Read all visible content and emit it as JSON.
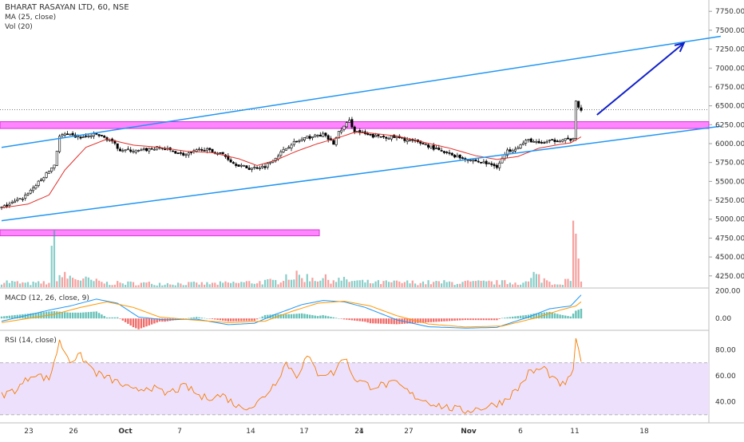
{
  "header": {
    "symbol_line": "BHARAT RASAYAN LTD, 60, NSE",
    "ma_label": "MA (25, close)",
    "vol_label": "Vol (20)"
  },
  "macd_panel": {
    "label": "MACD (12, 26, close, 9)"
  },
  "rsi_panel": {
    "label": "RSI (14, close)"
  },
  "colors": {
    "up": "#26a69a",
    "down": "#ef5350",
    "candle_body": "#000000",
    "ma_line": "#e0302a",
    "trend_line": "#2196f3",
    "zone_fill": "#ff66ff",
    "arrow": "#1020c8",
    "macd_line": "#2196f3",
    "signal_line": "#ff9800",
    "rsi_line": "#f57c00",
    "rsi_band": "#ede0fc"
  },
  "chart_data": [
    {
      "type": "candlestick",
      "title": "BHARAT RASAYAN LTD, 60, NSE",
      "ylim": [
        4100,
        7900
      ],
      "y_ticks": [
        "7750.00",
        "7500.00",
        "7250.00",
        "7000.00",
        "6750.00",
        "6500.00",
        "6250.00",
        "6000.00",
        "5750.00",
        "5500.00",
        "5250.00",
        "5000.00",
        "4750.00",
        "4500.00",
        "4250.00"
      ],
      "x_tick_labels": [
        "23",
        "26",
        "Oct",
        "7",
        "14",
        "17",
        "21",
        "24",
        "27",
        "Nov",
        "6",
        "11",
        "18"
      ],
      "close_anchors": [
        [
          0,
          5150
        ],
        [
          8,
          5280
        ],
        [
          15,
          5520
        ],
        [
          20,
          5720
        ],
        [
          22,
          6100
        ],
        [
          24,
          6120
        ],
        [
          30,
          6080
        ],
        [
          36,
          6120
        ],
        [
          41,
          6050
        ],
        [
          45,
          5920
        ],
        [
          52,
          5900
        ],
        [
          60,
          5950
        ],
        [
          70,
          5850
        ],
        [
          76,
          5930
        ],
        [
          84,
          5860
        ],
        [
          88,
          5740
        ],
        [
          94,
          5670
        ],
        [
          100,
          5700
        ],
        [
          104,
          5820
        ],
        [
          110,
          6000
        ],
        [
          116,
          6080
        ],
        [
          122,
          6120
        ],
        [
          126,
          6000
        ],
        [
          128,
          6150
        ],
        [
          132,
          6300
        ],
        [
          134,
          6170
        ],
        [
          140,
          6100
        ],
        [
          150,
          6080
        ],
        [
          160,
          6000
        ],
        [
          168,
          5880
        ],
        [
          176,
          5800
        ],
        [
          184,
          5740
        ],
        [
          188,
          5700
        ],
        [
          192,
          5900
        ],
        [
          196,
          5960
        ],
        [
          200,
          6050
        ],
        [
          204,
          6000
        ],
        [
          208,
          6030
        ],
        [
          214,
          6060
        ],
        [
          217,
          6050
        ],
        [
          218,
          6560
        ],
        [
          219,
          6470
        ],
        [
          220,
          6450
        ]
      ],
      "ma_anchors": [
        [
          0,
          5150
        ],
        [
          10,
          5200
        ],
        [
          18,
          5320
        ],
        [
          24,
          5650
        ],
        [
          32,
          5950
        ],
        [
          40,
          6060
        ],
        [
          50,
          5980
        ],
        [
          60,
          5950
        ],
        [
          70,
          5900
        ],
        [
          80,
          5880
        ],
        [
          90,
          5800
        ],
        [
          97,
          5710
        ],
        [
          104,
          5780
        ],
        [
          112,
          5900
        ],
        [
          120,
          6000
        ],
        [
          128,
          6080
        ],
        [
          134,
          6150
        ],
        [
          140,
          6140
        ],
        [
          150,
          6100
        ],
        [
          160,
          6020
        ],
        [
          170,
          5940
        ],
        [
          180,
          5840
        ],
        [
          188,
          5790
        ],
        [
          196,
          5830
        ],
        [
          204,
          5940
        ],
        [
          212,
          5990
        ],
        [
          216,
          6010
        ],
        [
          220,
          6090
        ]
      ],
      "volume_anchors": [
        [
          0,
          1
        ],
        [
          10,
          0.6
        ],
        [
          18,
          0.8
        ],
        [
          20,
          8.7
        ],
        [
          21,
          2
        ],
        [
          40,
          0.7
        ],
        [
          80,
          0.6
        ],
        [
          105,
          1
        ],
        [
          107,
          2
        ],
        [
          140,
          0.8
        ],
        [
          200,
          0.8
        ],
        [
          202,
          2
        ],
        [
          210,
          0.6
        ],
        [
          216,
          1.2
        ],
        [
          217,
          10.2
        ],
        [
          218,
          8.2
        ],
        [
          219,
          4.4
        ],
        [
          220,
          2
        ]
      ],
      "annotations": {
        "channel_upper": [
          [
            0,
            5950
          ],
          [
            273,
            7420
          ]
        ],
        "channel_lower": [
          [
            0,
            4980
          ],
          [
            273,
            6230
          ]
        ],
        "resistance_zone": [
          6200,
          6290
        ],
        "volume_zone_label_level": [
          4780,
          4860
        ],
        "projection_arrow_from": [
          226,
          6380
        ],
        "projection_arrow_to": [
          259,
          7330
        ]
      }
    },
    {
      "type": "line",
      "title": "MACD (12, 26, close, 9)",
      "ylim": [
        -80,
        220
      ],
      "y_ticks": [
        "200.00",
        "0.00"
      ],
      "series": [
        {
          "name": "MACD",
          "anchors": [
            [
              0,
              -20
            ],
            [
              18,
              60
            ],
            [
              26,
              90
            ],
            [
              36,
              140
            ],
            [
              44,
              110
            ],
            [
              52,
              10
            ],
            [
              62,
              -10
            ],
            [
              74,
              -5
            ],
            [
              86,
              -45
            ],
            [
              96,
              -35
            ],
            [
              104,
              30
            ],
            [
              114,
              100
            ],
            [
              122,
              130
            ],
            [
              130,
              120
            ],
            [
              138,
              80
            ],
            [
              150,
              -10
            ],
            [
              162,
              -60
            ],
            [
              176,
              -70
            ],
            [
              188,
              -65
            ],
            [
              200,
              10
            ],
            [
              208,
              70
            ],
            [
              216,
              90
            ],
            [
              220,
              170
            ]
          ]
        },
        {
          "name": "Signal",
          "anchors": [
            [
              0,
              -30
            ],
            [
              20,
              30
            ],
            [
              30,
              80
            ],
            [
              40,
              120
            ],
            [
              50,
              80
            ],
            [
              60,
              10
            ],
            [
              72,
              -10
            ],
            [
              86,
              -30
            ],
            [
              100,
              -20
            ],
            [
              110,
              50
            ],
            [
              120,
              110
            ],
            [
              130,
              125
            ],
            [
              140,
              90
            ],
            [
              150,
              20
            ],
            [
              162,
              -40
            ],
            [
              176,
              -62
            ],
            [
              190,
              -55
            ],
            [
              202,
              0
            ],
            [
              212,
              60
            ],
            [
              218,
              90
            ],
            [
              220,
              120
            ]
          ]
        }
      ]
    },
    {
      "type": "line",
      "title": "RSI (14, close)",
      "ylim": [
        25,
        95
      ],
      "y_ticks": [
        "80.00",
        "60.00",
        "40.00"
      ],
      "band": [
        30,
        70
      ],
      "series": [
        {
          "name": "RSI",
          "anchors": [
            [
              0,
              45
            ],
            [
              6,
              50
            ],
            [
              12,
              62
            ],
            [
              18,
              57
            ],
            [
              22,
              86
            ],
            [
              26,
              72
            ],
            [
              30,
              75
            ],
            [
              36,
              62
            ],
            [
              44,
              55
            ],
            [
              50,
              48
            ],
            [
              56,
              52
            ],
            [
              62,
              46
            ],
            [
              70,
              52
            ],
            [
              76,
              43
            ],
            [
              84,
              45
            ],
            [
              90,
              36
            ],
            [
              96,
              37
            ],
            [
              100,
              45
            ],
            [
              104,
              55
            ],
            [
              108,
              70
            ],
            [
              112,
              60
            ],
            [
              116,
              75
            ],
            [
              120,
              62
            ],
            [
              126,
              62
            ],
            [
              130,
              75
            ],
            [
              134,
              58
            ],
            [
              140,
              52
            ],
            [
              150,
              54
            ],
            [
              156,
              45
            ],
            [
              162,
              40
            ],
            [
              168,
              36
            ],
            [
              176,
              33
            ],
            [
              184,
              36
            ],
            [
              190,
              40
            ],
            [
              196,
              50
            ],
            [
              200,
              62
            ],
            [
              206,
              66
            ],
            [
              210,
              56
            ],
            [
              214,
              52
            ],
            [
              217,
              66
            ],
            [
              218,
              86
            ],
            [
              219,
              82
            ],
            [
              220,
              70
            ]
          ]
        }
      ]
    }
  ]
}
